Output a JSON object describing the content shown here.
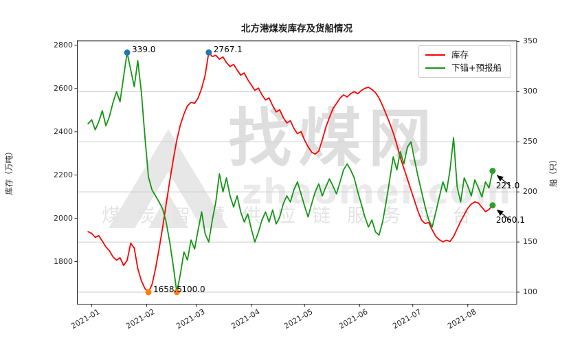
{
  "watermark": {
    "brand": "找煤网",
    "domain": "zhaomei.com",
    "tagline": "煤炭智慧供应链服务平台"
  },
  "chart_data": {
    "type": "line",
    "title": "北方港煤炭库存及货船情况",
    "x_axis": {
      "tick_labels": [
        "2021-01",
        "2021-02",
        "2021-03",
        "2021-04",
        "2021-05",
        "2021-06",
        "2021-07",
        "2021-08"
      ],
      "tick_days": [
        2,
        33,
        61,
        92,
        122,
        153,
        183,
        214
      ],
      "xlim_days": [
        -6.1,
        241.6
      ],
      "day_zero_date": "2020-12-30"
    },
    "y_left": {
      "label": "库存（万吨）",
      "ticks": [
        1800,
        2000,
        2200,
        2400,
        2600,
        2800
      ],
      "lim": [
        1603,
        2822
      ]
    },
    "y_right": {
      "label": "船（只）",
      "ticks": [
        100,
        150,
        200,
        250,
        300,
        350
      ],
      "lim": [
        88,
        351
      ],
      "gridlines": true
    },
    "grid_color": "#cccccc",
    "spine_color": "#262626",
    "series": [
      {
        "name": "库存",
        "axis": "left",
        "color": "#ff0000",
        "start_day": 0,
        "step_days": 2,
        "values": [
          1938,
          1930,
          1912,
          1920,
          1895,
          1868,
          1850,
          1822,
          1806,
          1818,
          1782,
          1805,
          1885,
          1862,
          1768,
          1712,
          1675,
          1658.5,
          1693,
          1768,
          1858,
          1958,
          2065,
          2172,
          2272,
          2362,
          2432,
          2482,
          2520,
          2536,
          2532,
          2556,
          2601,
          2662,
          2767.1,
          2748,
          2754,
          2736,
          2746,
          2720,
          2702,
          2712,
          2686,
          2662,
          2672,
          2641,
          2616,
          2592,
          2602,
          2571,
          2547,
          2557,
          2521,
          2492,
          2502,
          2466,
          2441,
          2451,
          2416,
          2391,
          2401,
          2362,
          2331,
          2306,
          2297,
          2311,
          2362,
          2421,
          2466,
          2506,
          2531,
          2556,
          2571,
          2561,
          2576,
          2586,
          2576,
          2591,
          2601,
          2606,
          2596,
          2581,
          2556,
          2521,
          2481,
          2441,
          2396,
          2341,
          2281,
          2231,
          2181,
          2131,
          2081,
          2031,
          1991,
          1976,
          1981,
          1946,
          1916,
          1901,
          1891,
          1899,
          1893,
          1916,
          1951,
          1986,
          2016,
          2046,
          2066,
          2076,
          2071,
          2051,
          2031,
          2041,
          2060.1
        ]
      },
      {
        "name": "下锚+预报船",
        "axis": "right",
        "color": "#149614",
        "start_day": 0,
        "step_days": 2,
        "values": [
          268,
          272,
          262,
          270,
          281,
          266,
          275,
          289,
          300,
          290,
          315,
          339,
          322,
          305,
          331,
          300,
          255,
          215,
          202,
          196,
          190,
          183,
          170,
          150,
          126,
          100,
          118,
          140,
          132,
          152,
          143,
          162,
          180,
          158,
          150,
          172,
          190,
          218,
          200,
          214,
          196,
          185,
          196,
          180,
          170,
          178,
          163,
          150,
          160,
          172,
          180,
          170,
          182,
          168,
          175,
          188,
          196,
          190,
          202,
          210,
          198,
          186,
          175,
          188,
          200,
          208,
          196,
          205,
          213,
          206,
          198,
          210,
          222,
          228,
          222,
          214,
          200,
          188,
          175,
          165,
          172,
          160,
          157,
          170,
          190,
          212,
          235,
          222,
          240,
          228,
          245,
          250,
          232,
          215,
          200,
          185,
          172,
          165,
          180,
          195,
          210,
          200,
          222,
          254,
          205,
          190,
          214,
          206,
          196,
          212,
          204,
          195,
          210,
          204,
          221
        ]
      }
    ],
    "annotations": [
      {
        "label": "339.0",
        "series": 1,
        "day": 22,
        "value": 339,
        "marker_color": "#1f77b4",
        "placement": "right"
      },
      {
        "label": "2767.1",
        "series": 0,
        "day": 68,
        "value": 2767.1,
        "marker_color": "#1f77b4",
        "placement": "right"
      },
      {
        "label": "1658.5",
        "series": 0,
        "day": 34,
        "value": 1658.5,
        "marker_color": "#ff7f0e",
        "placement": "right"
      },
      {
        "label": "100.0",
        "series": 1,
        "day": 50,
        "value": 100,
        "marker_color": "#ff7f0e",
        "placement": "right"
      },
      {
        "label": "221.0",
        "series": 1,
        "day": 228,
        "value": 221,
        "marker_color": "#2ca02c",
        "placement": "arrow-below-right"
      },
      {
        "label": "2060.1",
        "series": 0,
        "day": 228,
        "value": 2060.1,
        "marker_color": "#2ca02c",
        "placement": "arrow-below-right"
      }
    ],
    "legend": {
      "position": "upper-right",
      "entries": [
        "库存",
        "下锚+预报船"
      ]
    }
  }
}
